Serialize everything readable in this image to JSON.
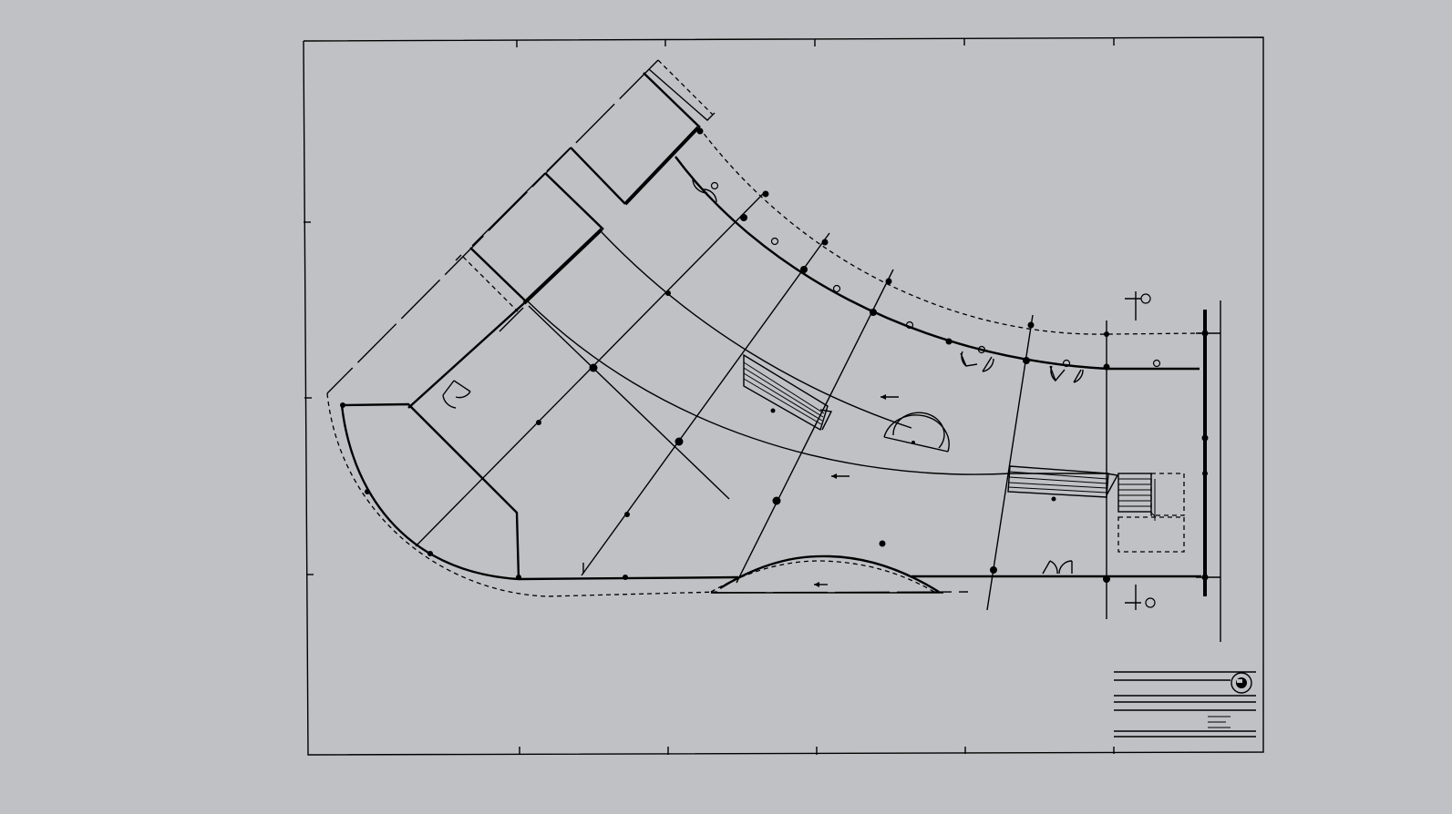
{
  "drawing": {
    "subject": "",
    "background": "#c0c1c5",
    "line_color": "#000000",
    "title_block_text": []
  }
}
